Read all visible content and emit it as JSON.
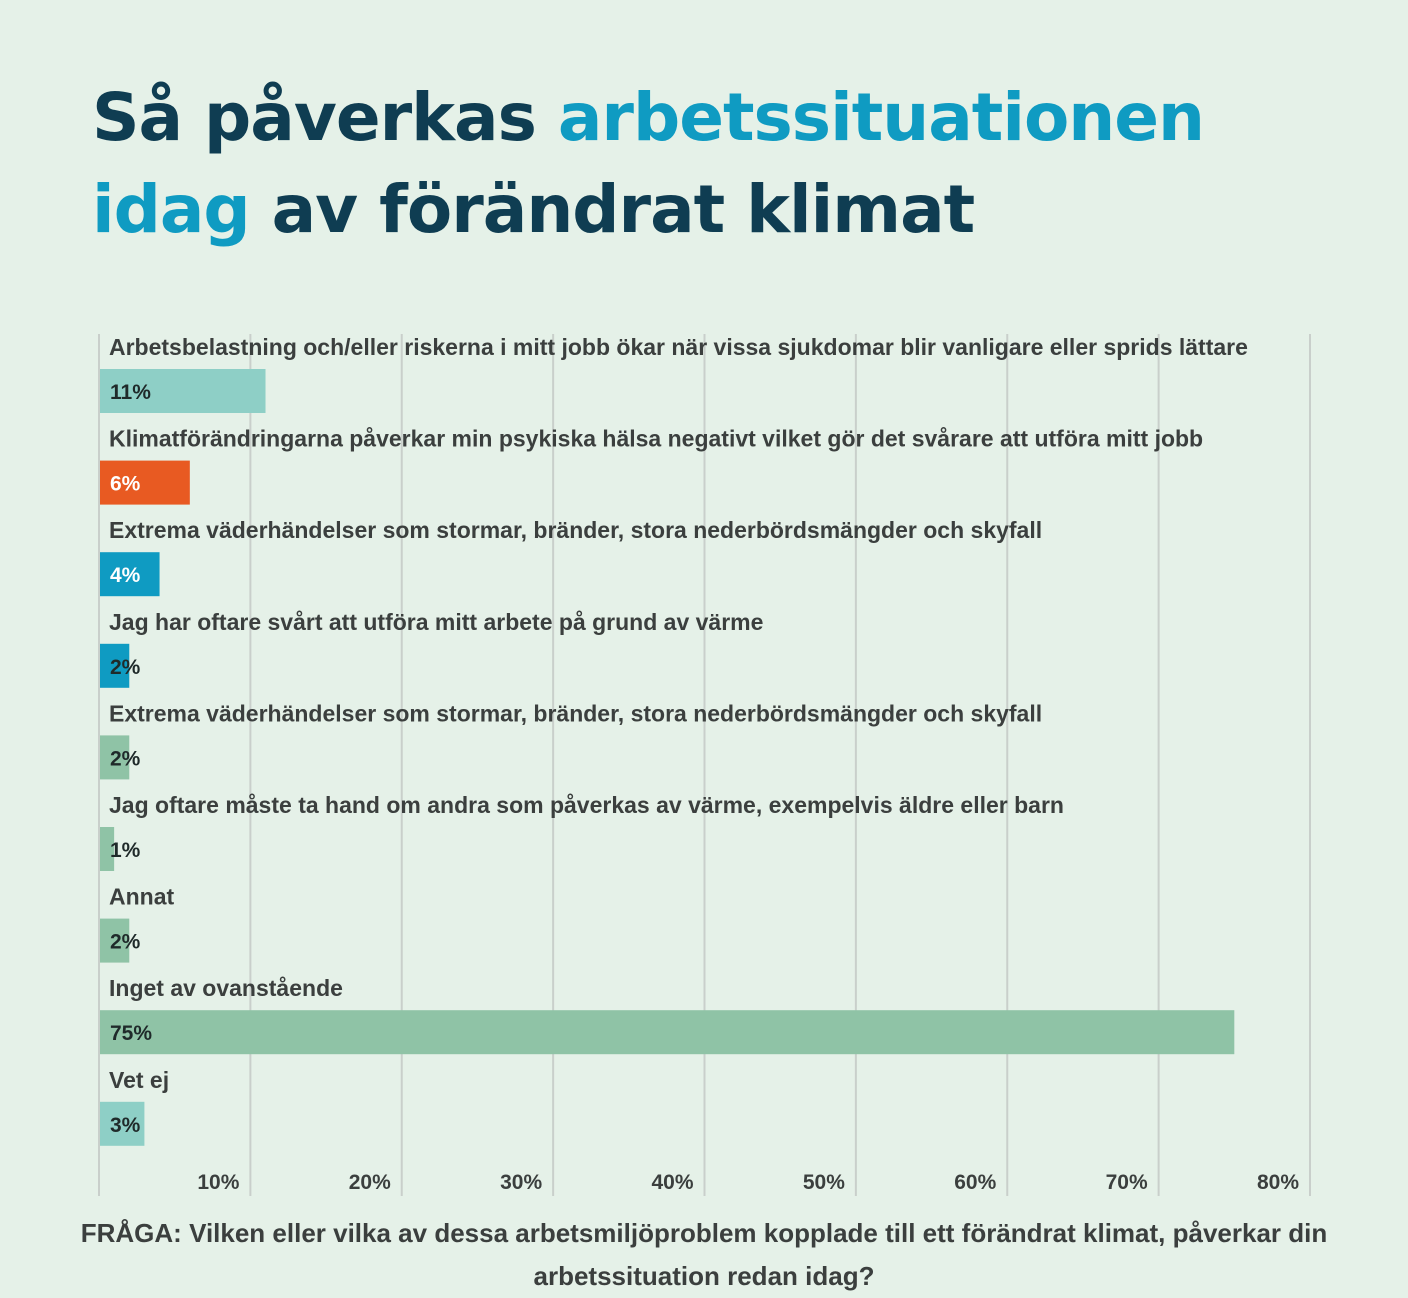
{
  "title": {
    "part1": "Så påverkas ",
    "accent1": "arbetssituationen",
    "accent2": "idag",
    "part2": " av förändrat klimat"
  },
  "question": "FRÅGA: Vilken eller vilka av dessa arbetsmiljöproblem kopplade till ett förändrat klimat, påverkar din arbetssituation redan idag?",
  "colors": {
    "background": "#e5f1e8",
    "title": "#0f3d52",
    "accent": "#0f9bc2",
    "grid": "#c9cfcb"
  },
  "chart_data": {
    "type": "bar",
    "orientation": "horizontal",
    "title": "Så påverkas arbetssituationen idag av förändrat klimat",
    "xlim": [
      0,
      80
    ],
    "xticks": [
      "10%",
      "20%",
      "30%",
      "40%",
      "50%",
      "60%",
      "70%",
      "80%"
    ],
    "grid": true,
    "categories": [
      "Arbetsbelastning och/eller riskerna i mitt jobb ökar när vissa sjukdomar blir vanligare eller sprids lättare",
      "Klimatförändringarna påverkar min psykiska hälsa negativt vilket gör det svårare att utföra mitt jobb",
      "Extrema väderhändelser som stormar, bränder, stora nederbördsmängder och skyfall",
      "Jag har oftare svårt att utföra mitt arbete på grund av värme",
      "Extrema väderhändelser som stormar, bränder, stora nederbördsmängder och skyfall",
      "Jag oftare måste ta hand om andra som påverkas av värme, exempelvis äldre eller barn",
      "Annat",
      "Inget av ovanstående",
      "Vet ej"
    ],
    "values": [
      11,
      6,
      4,
      2,
      2,
      1,
      2,
      75,
      3
    ],
    "value_labels": [
      "11%",
      "6%",
      "4%",
      "2%",
      "2%",
      "1%",
      "2%",
      "75%",
      "3%"
    ],
    "bar_colors": [
      "#8ecfc6",
      "#e85a22",
      "#0f9bc2",
      "#0f9bc2",
      "#8fc3a6",
      "#8fc3a6",
      "#8fc3a6",
      "#8fc3a6",
      "#8ecfc6"
    ],
    "label_colors": [
      "#1f2a2a",
      "#ffffff",
      "#ffffff",
      "#1f2a2a",
      "#1f2a2a",
      "#1f2a2a",
      "#1f2a2a",
      "#1f2a2a",
      "#1f2a2a"
    ]
  }
}
